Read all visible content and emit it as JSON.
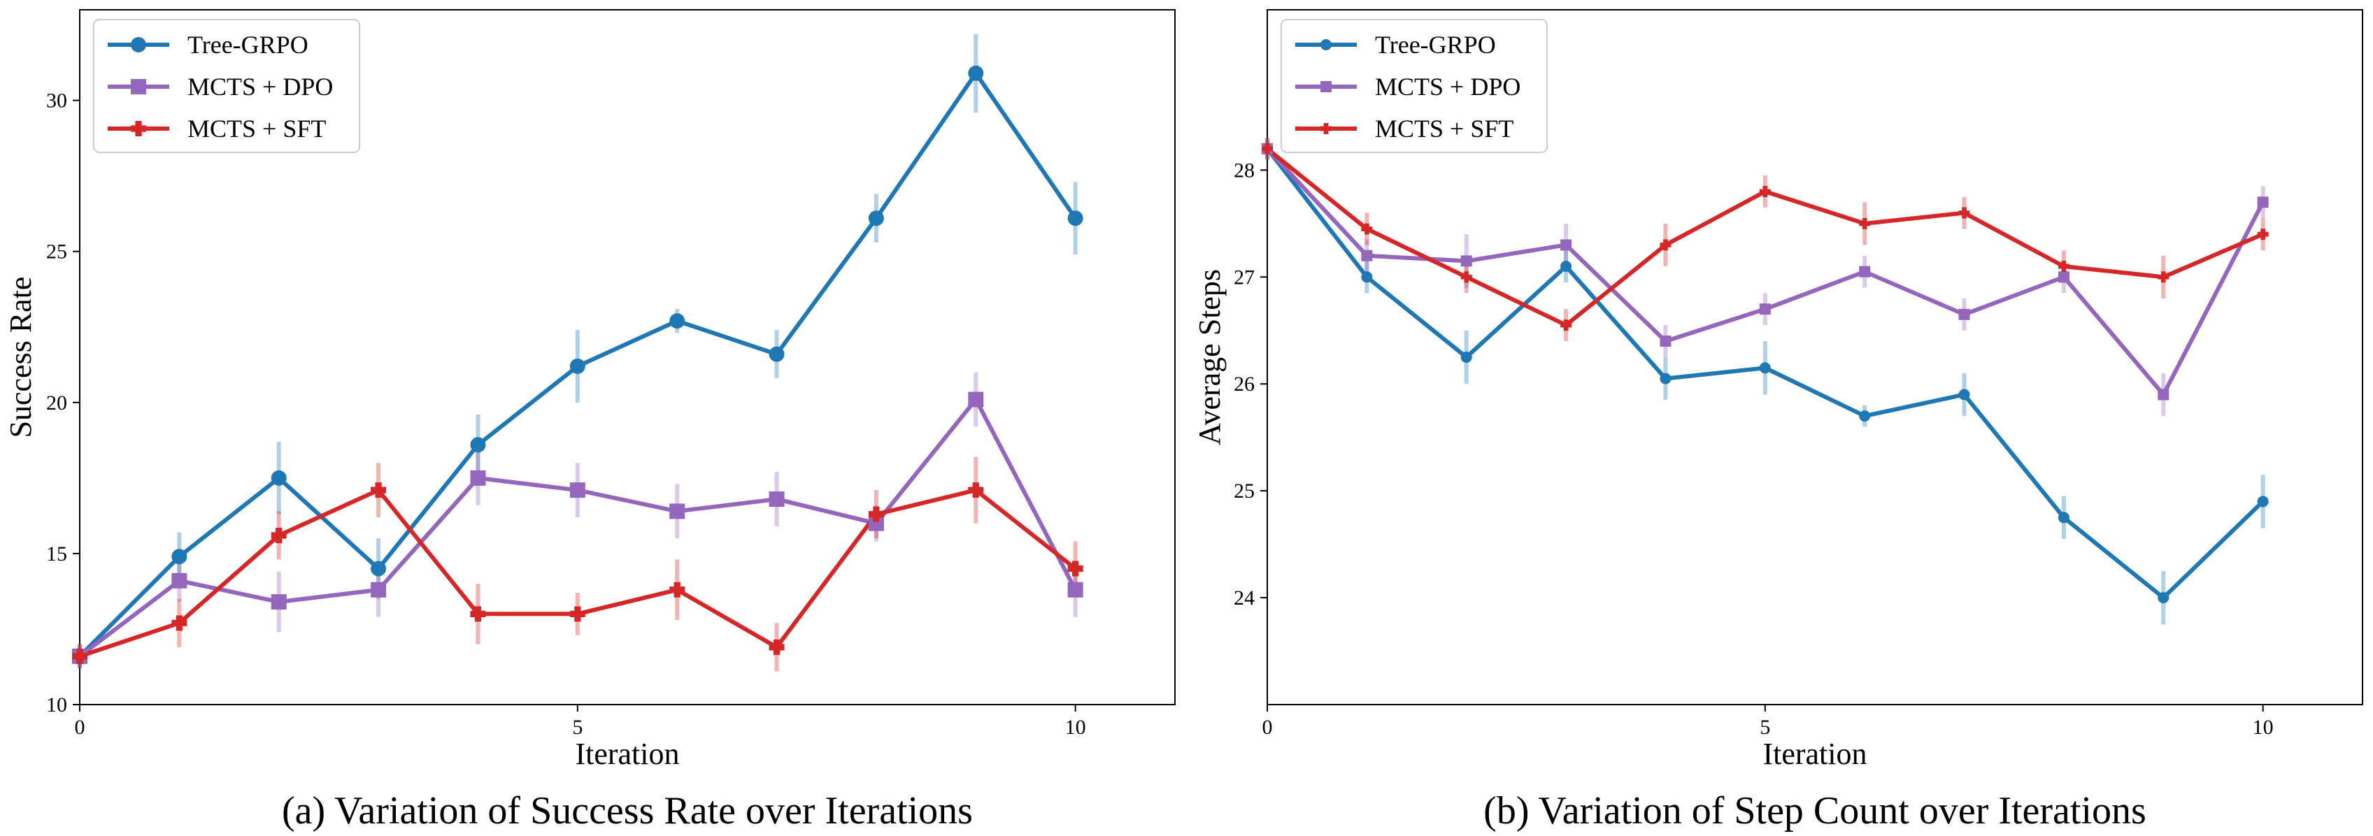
{
  "chart_data": [
    {
      "type": "line",
      "caption": "(a)  Variation of Success Rate over Iterations",
      "xlabel": "Iteration",
      "ylabel": "Success Rate",
      "xlim": [
        0,
        11
      ],
      "ylim": [
        10,
        33
      ],
      "xticks": [
        0,
        5,
        10
      ],
      "yticks": [
        10,
        15,
        20,
        25,
        30
      ],
      "legend_position": "top-left",
      "marker_size": "large",
      "x": [
        0,
        1,
        2,
        3,
        4,
        5,
        6,
        7,
        8,
        9,
        10
      ],
      "series": [
        {
          "name": "Tree-GRPO",
          "color": "#1f77b4",
          "marker": "circle",
          "values": [
            11.6,
            14.9,
            17.5,
            14.5,
            18.6,
            21.2,
            22.7,
            21.6,
            26.1,
            30.9,
            26.1
          ],
          "errors": [
            0.4,
            0.8,
            1.2,
            1.0,
            1.0,
            1.2,
            0.4,
            0.8,
            0.8,
            1.3,
            1.2
          ]
        },
        {
          "name": "MCTS + DPO",
          "color": "#9467bd",
          "marker": "square",
          "values": [
            11.6,
            14.1,
            13.4,
            13.8,
            17.5,
            17.1,
            16.4,
            16.8,
            16.0,
            20.1,
            13.8
          ],
          "errors": [
            0.4,
            0.7,
            1.0,
            0.9,
            0.9,
            0.9,
            0.9,
            0.9,
            0.6,
            0.9,
            0.9
          ]
        },
        {
          "name": "MCTS + SFT",
          "color": "#d62728",
          "marker": "plus",
          "values": [
            11.6,
            12.7,
            15.6,
            17.1,
            13.0,
            13.0,
            13.8,
            11.9,
            16.3,
            17.1,
            14.5
          ],
          "errors": [
            0.4,
            0.8,
            0.8,
            0.9,
            1.0,
            0.7,
            1.0,
            0.8,
            0.8,
            1.1,
            0.9
          ]
        }
      ]
    },
    {
      "type": "line",
      "caption": "(b)  Variation of Step Count over Iterations",
      "xlabel": "Iteration",
      "ylabel": "Average Steps",
      "xlim": [
        0,
        11
      ],
      "ylim": [
        23,
        29.5
      ],
      "xticks": [
        0,
        5,
        10
      ],
      "yticks": [
        24,
        25,
        26,
        27,
        28
      ],
      "legend_position": "top-left",
      "marker_size": "small",
      "x": [
        0,
        1,
        2,
        3,
        4,
        5,
        6,
        7,
        8,
        9,
        10
      ],
      "series": [
        {
          "name": "Tree-GRPO",
          "color": "#1f77b4",
          "marker": "circle",
          "values": [
            28.2,
            27.0,
            26.25,
            27.1,
            26.05,
            26.15,
            25.7,
            25.9,
            24.75,
            24.0,
            24.9
          ],
          "errors": [
            0.1,
            0.15,
            0.25,
            0.15,
            0.2,
            0.25,
            0.1,
            0.2,
            0.2,
            0.25,
            0.25
          ]
        },
        {
          "name": "MCTS + DPO",
          "color": "#9467bd",
          "marker": "square",
          "values": [
            28.2,
            27.2,
            27.15,
            27.3,
            26.4,
            26.7,
            27.05,
            26.65,
            27.0,
            25.9,
            27.7
          ],
          "errors": [
            0.1,
            0.15,
            0.25,
            0.2,
            0.15,
            0.15,
            0.15,
            0.15,
            0.15,
            0.2,
            0.15
          ]
        },
        {
          "name": "MCTS + SFT",
          "color": "#d62728",
          "marker": "plus",
          "values": [
            28.2,
            27.45,
            27.0,
            26.55,
            27.3,
            27.8,
            27.5,
            27.6,
            27.1,
            27.0,
            27.4
          ],
          "errors": [
            0.1,
            0.15,
            0.15,
            0.15,
            0.2,
            0.15,
            0.2,
            0.15,
            0.15,
            0.2,
            0.15
          ]
        }
      ]
    }
  ]
}
